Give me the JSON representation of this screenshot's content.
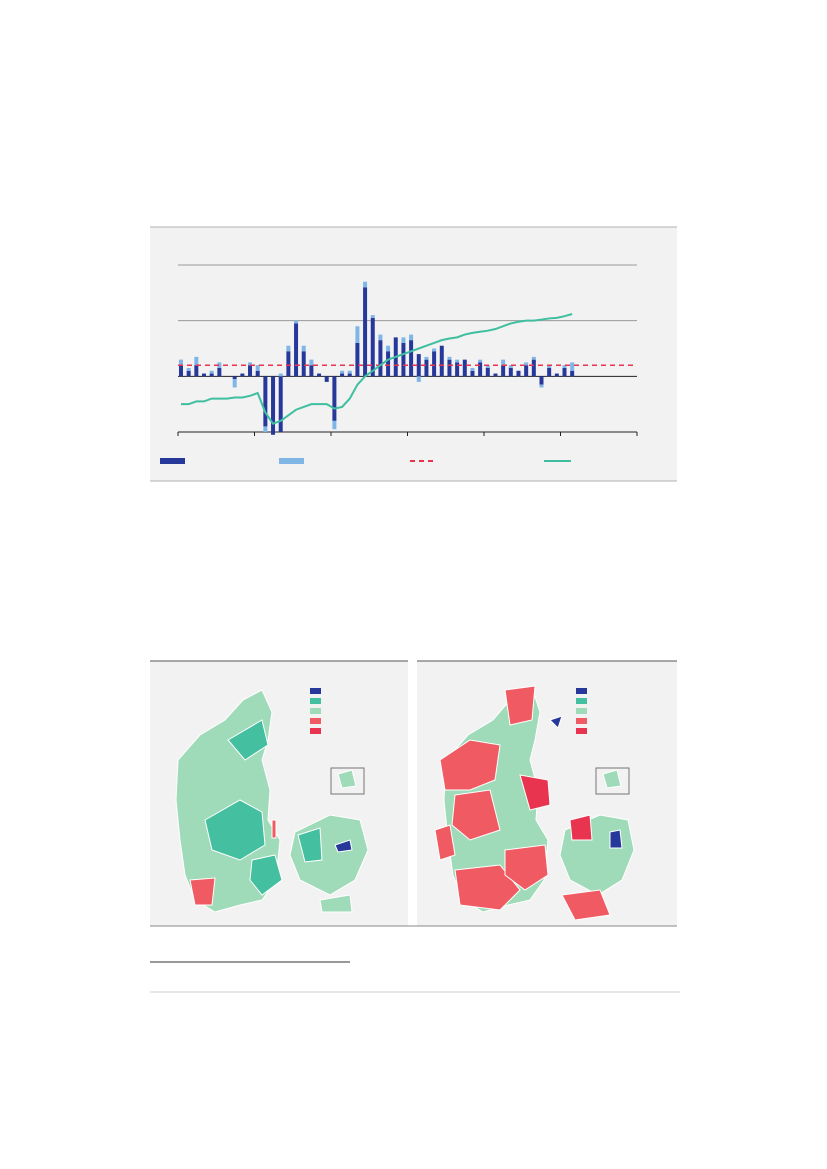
{
  "chart_data": {
    "type": "bar",
    "categories": [
      null,
      null,
      null,
      null,
      null,
      null,
      null,
      null,
      null,
      null,
      null,
      null,
      null,
      null,
      null,
      null,
      null,
      null,
      null,
      null,
      null,
      null,
      null,
      null,
      null,
      null,
      null,
      null,
      null,
      null,
      null,
      null,
      null,
      null,
      null,
      null,
      null,
      null,
      null,
      null,
      null,
      null,
      null,
      null,
      null,
      null,
      null,
      null,
      null,
      null,
      null,
      null
    ],
    "series": [
      {
        "color": "#26399a",
        "values": [
          0.2,
          0.1,
          0.2,
          0.05,
          0.05,
          0.15,
          0,
          -0.05,
          0.05,
          0.2,
          0.1,
          -0.9,
          -1.05,
          -1.0,
          0.45,
          0.95,
          0.45,
          0.2,
          0.05,
          -0.1,
          -0.8,
          0.05,
          0.05,
          0.6,
          1.6,
          1.05,
          0.65,
          0.45,
          0.7,
          0.6,
          0.65,
          0.4,
          0.3,
          0.45,
          0.55,
          0.3,
          0.25,
          0.3,
          0.1,
          0.25,
          0.15,
          0.05,
          0.2,
          0.15,
          0.1,
          0.2,
          0.3,
          -0.15,
          0.15,
          0.05,
          0.15,
          0.1
        ]
      },
      {
        "color": "#7fb6e6",
        "values": [
          0.1,
          0.05,
          0.15,
          0,
          0.05,
          0.1,
          0,
          -0.15,
          0,
          0.05,
          0.1,
          -0.1,
          0,
          0.05,
          0.1,
          0.05,
          0.1,
          0.1,
          0,
          0,
          -0.15,
          0.05,
          0.05,
          0.3,
          0.1,
          0.05,
          0.1,
          0.1,
          0,
          0.1,
          0.1,
          -0.1,
          0.05,
          0.05,
          0,
          0.05,
          0.05,
          0,
          0.05,
          0.05,
          0.05,
          0,
          0.1,
          0.05,
          0,
          0.05,
          0.05,
          -0.05,
          0.05,
          0,
          0.05,
          0.15
        ]
      },
      {
        "color": "#e8344e",
        "type": "reference",
        "value": 0.2
      },
      {
        "color": "#3fbf9f",
        "type": "line",
        "values": [
          -0.5,
          -0.5,
          -0.45,
          -0.45,
          -0.4,
          -0.4,
          -0.4,
          -0.38,
          -0.38,
          -0.35,
          -0.3,
          -0.65,
          -0.85,
          -0.8,
          -0.7,
          -0.6,
          -0.55,
          -0.5,
          -0.5,
          -0.5,
          -0.58,
          -0.55,
          -0.4,
          -0.15,
          0,
          0.1,
          0.2,
          0.3,
          0.35,
          0.4,
          0.45,
          0.5,
          0.55,
          0.6,
          0.65,
          0.68,
          0.7,
          0.75,
          0.78,
          0.8,
          0.82,
          0.85,
          0.9,
          0.95,
          0.98,
          1.0,
          1.0,
          1.02,
          1.04,
          1.05,
          1.08,
          1.12
        ]
      }
    ],
    "ylim": [
      -1,
      2
    ],
    "yticks": [
      0,
      1,
      2
    ],
    "grid": true
  }
}
